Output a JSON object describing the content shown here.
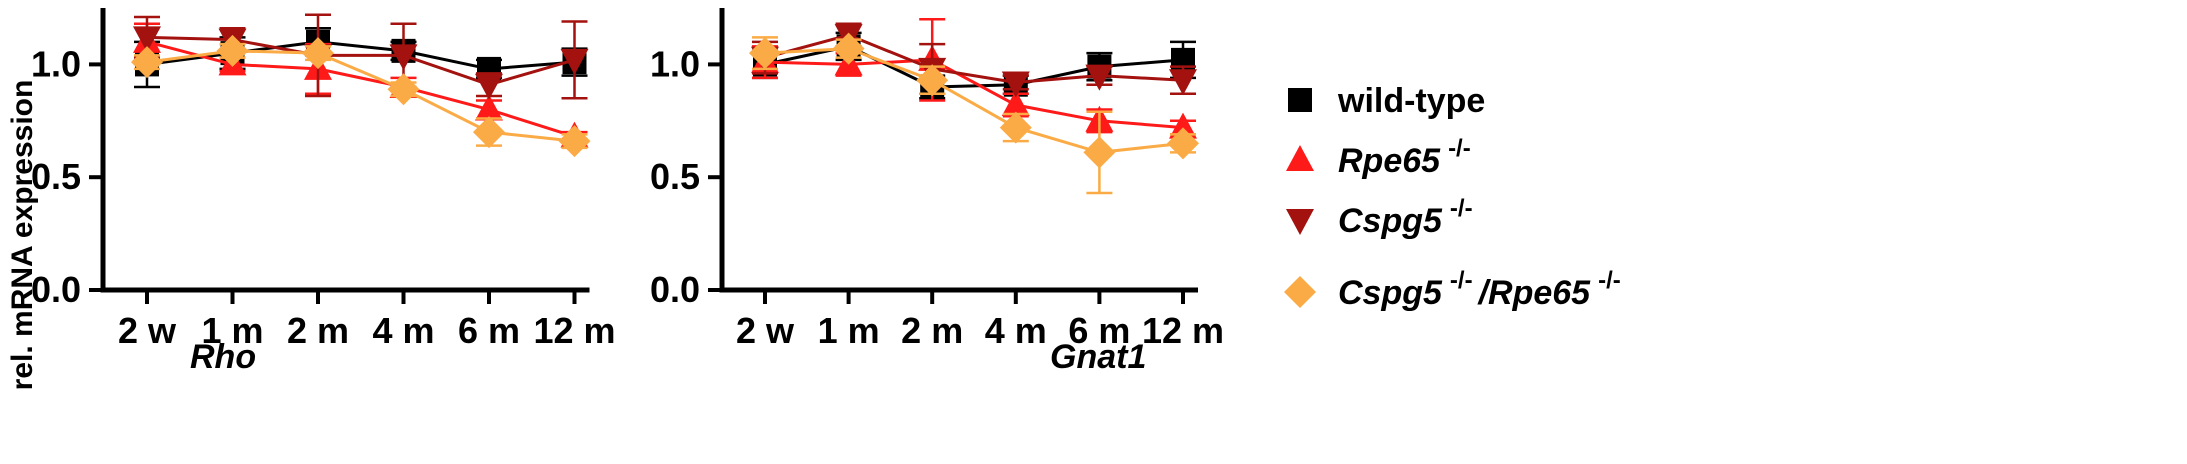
{
  "chart_data": [
    {
      "type": "line",
      "panel_label": "Rho",
      "ylabel": "rel. mRNA expression",
      "xlabel": "",
      "categories": [
        "2 w",
        "1 m",
        "2 m",
        "4 m",
        "6 m",
        "12 m"
      ],
      "ylim": [
        0,
        1.25
      ],
      "yticks": [
        "0.0",
        "0.5",
        "1.0"
      ],
      "grid": false,
      "series": [
        {
          "name": "wild-type",
          "values": [
            1.0,
            1.05,
            1.1,
            1.06,
            0.98,
            1.01
          ],
          "error": [
            0.1,
            0.07,
            0.06,
            0.04,
            0.04,
            0.06
          ]
        },
        {
          "name": "Rpe65",
          "values": [
            1.1,
            1.0,
            0.98,
            0.9,
            0.8,
            0.68
          ],
          "error": [
            0.08,
            0.03,
            0.11,
            0.04,
            0.04,
            0.02
          ]
        },
        {
          "name": "Cspg5",
          "values": [
            1.12,
            1.11,
            1.04,
            1.04,
            0.91,
            1.02
          ],
          "error": [
            0.09,
            0.05,
            0.18,
            0.14,
            0.05,
            0.17
          ]
        },
        {
          "name": "Cspg5 / Rpe65",
          "values": [
            1.01,
            1.06,
            1.05,
            0.89,
            0.7,
            0.66
          ],
          "error": [
            0.03,
            0.03,
            0.03,
            0.03,
            0.06,
            0.03
          ]
        }
      ]
    },
    {
      "type": "line",
      "panel_label": "Gnat1",
      "xlabel": "",
      "categories": [
        "2 w",
        "1 m",
        "2 m",
        "4 m",
        "6 m",
        "12 m"
      ],
      "ylim": [
        0,
        1.25
      ],
      "yticks": [
        "0.0",
        "0.5",
        "1.0"
      ],
      "grid": false,
      "series": [
        {
          "name": "wild-type",
          "values": [
            1.0,
            1.08,
            0.9,
            0.91,
            0.99,
            1.02
          ],
          "error": [
            0.06,
            0.06,
            0.05,
            0.04,
            0.06,
            0.08
          ]
        },
        {
          "name": "Rpe65",
          "values": [
            1.01,
            1.0,
            1.02,
            0.82,
            0.75,
            0.72
          ],
          "error": [
            0.07,
            0.05,
            0.18,
            0.05,
            0.05,
            0.03
          ]
        },
        {
          "name": "Cspg5",
          "values": [
            1.03,
            1.13,
            0.98,
            0.92,
            0.95,
            0.93
          ],
          "error": [
            0.07,
            0.05,
            0.11,
            0.03,
            0.04,
            0.06
          ]
        },
        {
          "name": "Cspg5 / Rpe65",
          "values": [
            1.05,
            1.07,
            0.93,
            0.72,
            0.61,
            0.65
          ],
          "error": [
            0.07,
            0.04,
            0.06,
            0.06,
            0.18,
            0.04
          ]
        }
      ]
    }
  ],
  "legend": {
    "placement": "right",
    "items": [
      {
        "label_main": "wild-type",
        "label_sup": "",
        "label_main2": "",
        "label_sup2": "",
        "marker": "square",
        "color": "#000000"
      },
      {
        "label_main": "Rpe65",
        "label_sup": "-/-",
        "label_main2": "",
        "label_sup2": "",
        "marker": "triangle-up",
        "color": "#ff1a1a"
      },
      {
        "label_main": "Cspg5",
        "label_sup": "-/-",
        "label_main2": "",
        "label_sup2": "",
        "marker": "triangle-down",
        "color": "#a3120f"
      },
      {
        "label_main": "Cspg5",
        "label_sup": "-/-",
        "label_main2": "/Rpe65",
        "label_sup2": "-/-",
        "marker": "diamond",
        "color": "#fbab45"
      }
    ]
  },
  "colors": {
    "wild-type": "#000000",
    "Rpe65": "#ff1a1a",
    "Cspg5": "#a3120f",
    "Cspg5 / Rpe65": "#fbab45"
  }
}
